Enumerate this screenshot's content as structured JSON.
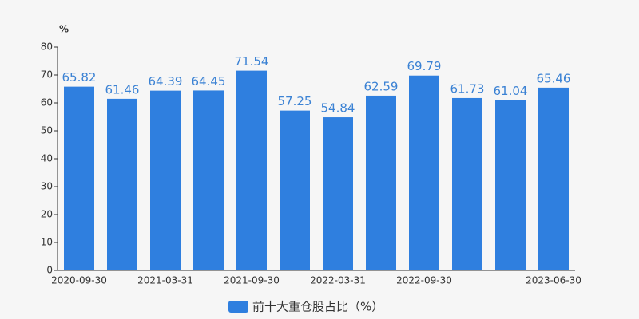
{
  "chart_data": {
    "type": "bar",
    "y_label": "%",
    "categories": [
      "2020-09-30",
      null,
      "2021-03-31",
      null,
      "2021-09-30",
      null,
      "2022-03-31",
      null,
      "2022-09-30",
      null,
      null,
      "2023-06-30"
    ],
    "series": [
      {
        "name": "前十大重仓股占比（%）",
        "color": "#2f7fdf",
        "values": [
          65.82,
          61.46,
          64.39,
          64.45,
          71.54,
          57.25,
          54.84,
          62.59,
          69.79,
          61.73,
          61.04,
          65.46
        ]
      }
    ],
    "ylim": [
      0,
      80
    ],
    "yticks": [
      0,
      10,
      20,
      30,
      40,
      50,
      60,
      70,
      80
    ],
    "grid": false,
    "legend": "bottom"
  }
}
